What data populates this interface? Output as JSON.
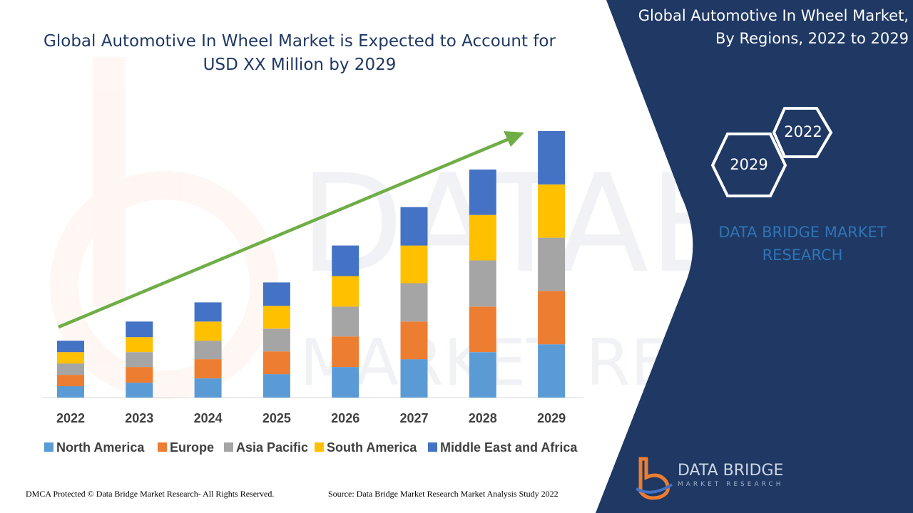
{
  "colors": {
    "north_america": "#5b9bd5",
    "europe": "#ed7d31",
    "asia_pacific": "#a5a5a5",
    "south_america": "#ffc000",
    "middle_east_africa": "#4472c4",
    "panel": "#1f3864",
    "arrow": "#70ad47"
  },
  "header": {
    "right_title_line1": "Global Automotive In Wheel Market,",
    "right_title_line2": "By Regions, 2022 to 2029"
  },
  "badges": {
    "hex_left": "2029",
    "hex_right": "2022"
  },
  "brand": {
    "line1": "DATA BRIDGE MARKET",
    "line2": "RESEARCH"
  },
  "logo": {
    "line1": "DATA BRIDGE",
    "line2": "MARKET RESEARCH"
  },
  "footer": {
    "left": "DMCA Protected © Data Bridge Market Research- All Rights Reserved.",
    "right": "Source: Data Bridge Market Research Market Analysis Study 2022"
  },
  "chart_data": {
    "type": "bar",
    "stacked": true,
    "title_line1": "Global Automotive In Wheel Market is Expected to Account for",
    "title_line2": "USD XX Million by 2029",
    "categories": [
      "2022",
      "2023",
      "2024",
      "2025",
      "2026",
      "2027",
      "2028",
      "2029"
    ],
    "series": [
      {
        "name": "North America",
        "color": "#5b9bd5",
        "values": [
          16,
          21,
          27,
          33,
          43,
          54,
          64,
          75
        ]
      },
      {
        "name": "Europe",
        "color": "#ed7d31",
        "values": [
          16,
          22,
          27,
          32,
          43,
          53,
          64,
          75
        ]
      },
      {
        "name": "Asia Pacific",
        "color": "#a5a5a5",
        "values": [
          16,
          21,
          26,
          32,
          42,
          54,
          65,
          75
        ]
      },
      {
        "name": "South America",
        "color": "#ffc000",
        "values": [
          16,
          21,
          27,
          32,
          43,
          53,
          64,
          75
        ]
      },
      {
        "name": "Middle East and Africa",
        "color": "#4472c4",
        "values": [
          16,
          22,
          27,
          33,
          43,
          54,
          64,
          75
        ]
      }
    ],
    "ylim": [
      0,
      375
    ],
    "grid": false,
    "legend": "bottom",
    "trend_arrow": true
  }
}
